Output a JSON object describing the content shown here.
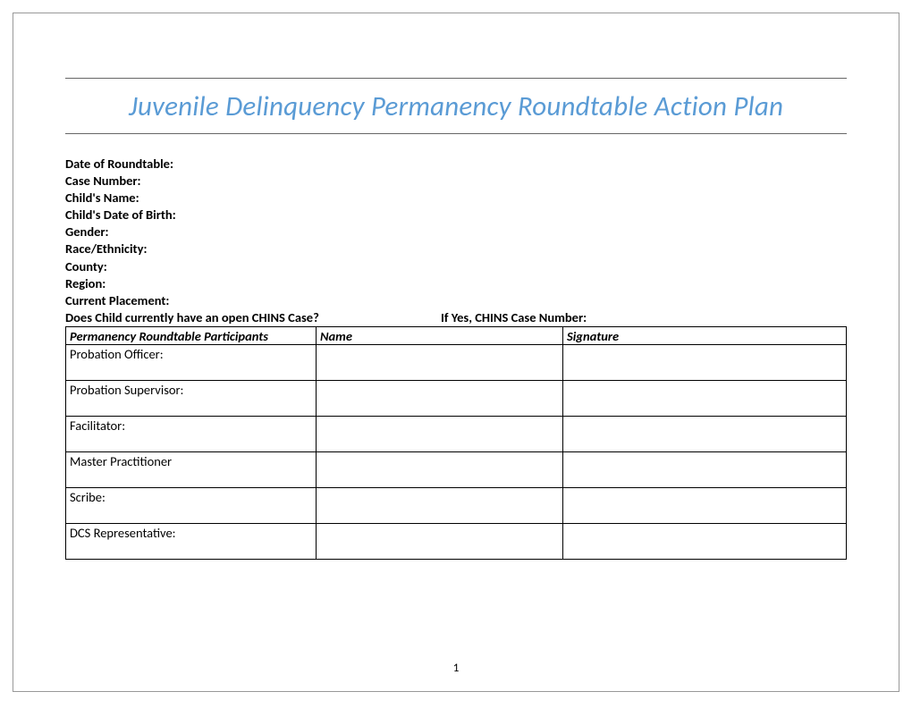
{
  "title": "Juvenile Delinquency Permanency Roundtable Action Plan",
  "title_color": "#5a9bd5",
  "fields": [
    "Date of Roundtable:",
    "Case Number:",
    "Child's Name:",
    "Child's Date of Birth:",
    "Gender:",
    "Race/Ethnicity:",
    "County:",
    "Region:",
    "Current Placement:"
  ],
  "chins_question": "Does Child currently have an open CHINS Case?",
  "chins_followup": "If Yes, CHINS Case Number:",
  "table": {
    "headers": {
      "role": "Permanency Roundtable Participants",
      "name": "Name",
      "signature": "Signature"
    },
    "rows": [
      "Probation Officer:",
      "Probation Supervisor:",
      "Facilitator:",
      "Master Practitioner",
      "Scribe:",
      "DCS Representative:"
    ]
  },
  "page_number": "1"
}
